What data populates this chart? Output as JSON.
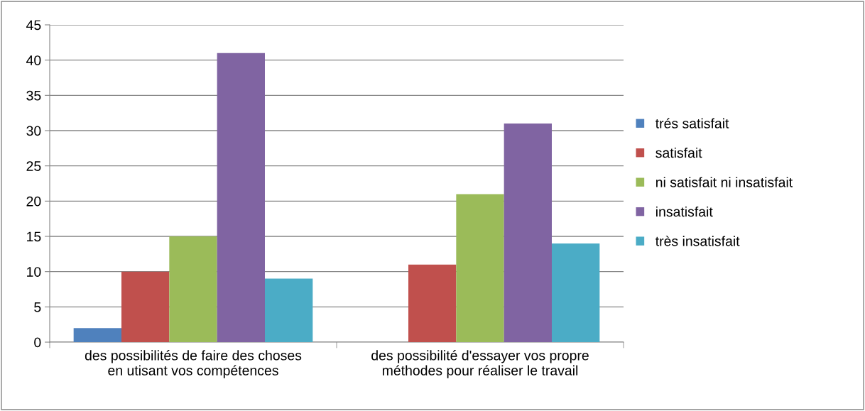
{
  "chart_data": {
    "type": "bar",
    "categories": [
      "des possibilités de faire des choses\nen utisant vos compétences",
      "des possibilité d'essayer vos propre\nméthodes pour réaliser le travail"
    ],
    "series": [
      {
        "name": "trés satisfait",
        "color": "#4f81bd",
        "values": [
          2,
          0
        ]
      },
      {
        "name": "satisfait",
        "color": "#c0504d",
        "values": [
          10,
          11
        ]
      },
      {
        "name": "ni satisfait ni insatisfait",
        "color": "#9bbb59",
        "values": [
          15,
          21
        ]
      },
      {
        "name": "insatisfait",
        "color": "#8064a2",
        "values": [
          41,
          31
        ]
      },
      {
        "name": "très insatisfait",
        "color": "#4bacc6",
        "values": [
          9,
          14
        ]
      }
    ],
    "ylim": [
      0,
      45
    ],
    "yticks": [
      0,
      5,
      10,
      15,
      20,
      25,
      30,
      35,
      40,
      45
    ],
    "grid": "y",
    "legend": "right"
  }
}
